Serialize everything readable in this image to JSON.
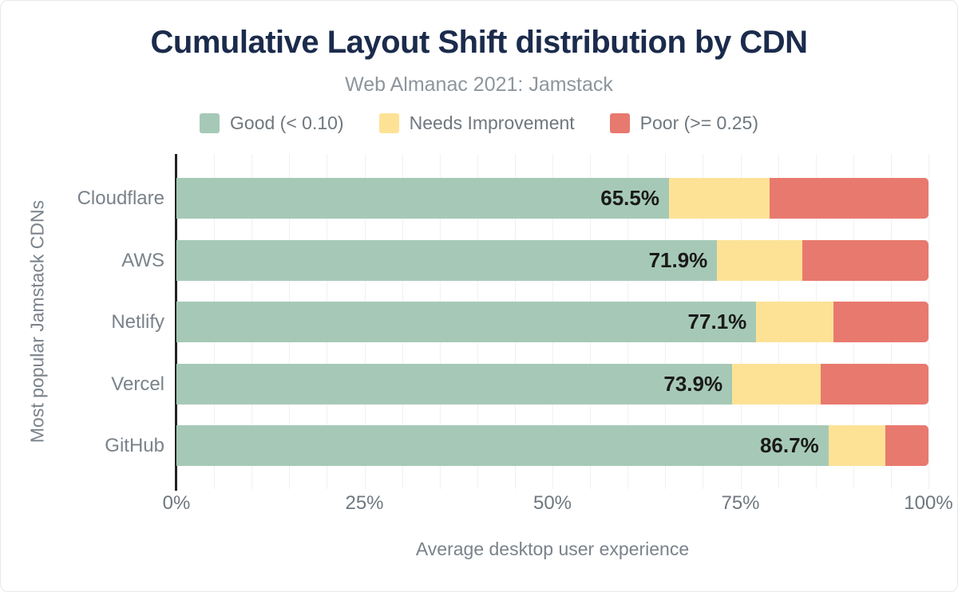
{
  "chart_data": {
    "type": "bar",
    "stacked": true,
    "orientation": "horizontal",
    "title": "Cumulative Layout Shift distribution by CDN",
    "subtitle": "Web Almanac 2021: Jamstack",
    "categories": [
      "Cloudflare",
      "AWS",
      "Netlify",
      "Vercel",
      "GitHub"
    ],
    "series": [
      {
        "name": "Good (< 0.10)",
        "color": "#a6c9b7",
        "values": [
          65.5,
          71.9,
          77.1,
          73.9,
          86.7
        ]
      },
      {
        "name": "Needs Improvement",
        "color": "#fde296",
        "values": [
          13.4,
          11.3,
          10.3,
          11.8,
          7.6
        ]
      },
      {
        "name": "Poor (>= 0.25)",
        "color": "#e8796e",
        "values": [
          21.1,
          16.8,
          12.6,
          14.3,
          5.7
        ]
      }
    ],
    "bar_labels": [
      "65.5%",
      "71.9%",
      "77.1%",
      "73.9%",
      "86.7%"
    ],
    "xlabel": "Average desktop user experience",
    "ylabel": "Most popular Jamstack CDNs",
    "x_ticks": {
      "labels": [
        "0%",
        "25%",
        "50%",
        "75%",
        "100%"
      ],
      "positions": [
        0,
        25,
        50,
        75,
        100
      ]
    },
    "xlim": [
      0,
      100
    ],
    "grid": {
      "vertical_step_percent": 5,
      "color": "#f1f1f1"
    },
    "legend_position": "top"
  },
  "colors": {
    "title": "#1b2b4c",
    "subtitle": "#8e959c",
    "axis_text": "#7a828a",
    "axis_line": "#222222",
    "good": "#a6c9b7",
    "needs_improvement": "#fde296",
    "poor": "#e8796e"
  }
}
